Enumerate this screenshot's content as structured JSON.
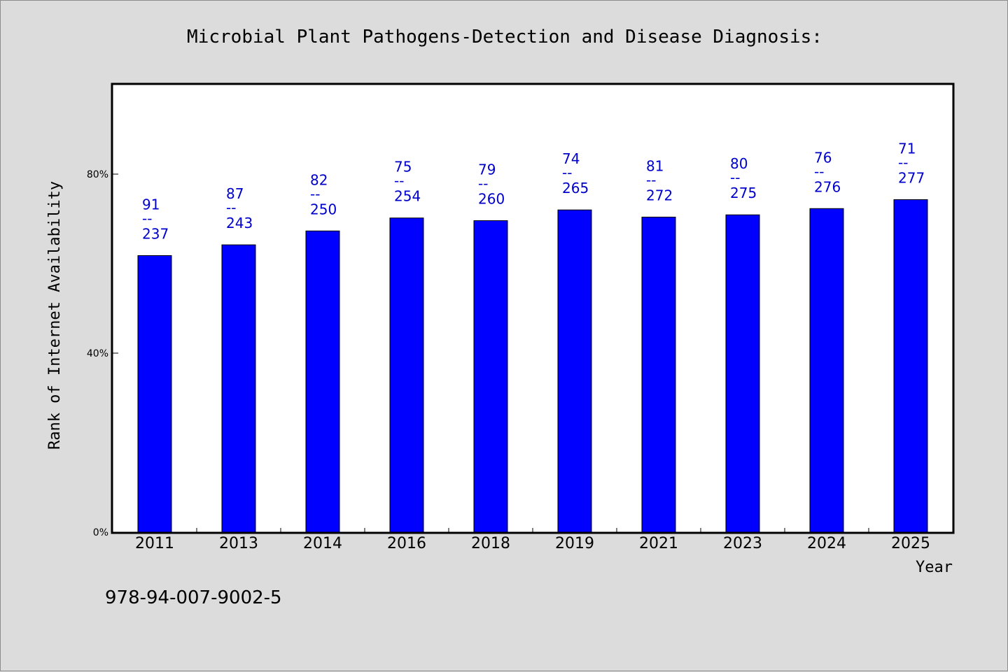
{
  "chart_data": {
    "type": "bar",
    "title": "Microbial Plant Pathogens-Detection and Disease Diagnosis:",
    "xlabel": "Year",
    "ylabel": "Rank of Internet Availability",
    "categories": [
      "2011",
      "2013",
      "2014",
      "2016",
      "2018",
      "2019",
      "2021",
      "2023",
      "2024",
      "2025"
    ],
    "values": [
      61.8,
      64.2,
      67.3,
      70.2,
      69.6,
      72.0,
      70.4,
      70.9,
      72.3,
      74.3
    ],
    "ylim": [
      0,
      100
    ],
    "yticks": [
      0,
      40,
      80
    ],
    "ytick_labels": [
      "0%",
      "40%",
      "80%"
    ],
    "bar_labels": [
      {
        "top": "91",
        "sep": "--",
        "bottom": "237"
      },
      {
        "top": "87",
        "sep": "--",
        "bottom": "243"
      },
      {
        "top": "82",
        "sep": "--",
        "bottom": "250"
      },
      {
        "top": "75",
        "sep": "--",
        "bottom": "254"
      },
      {
        "top": "79",
        "sep": "--",
        "bottom": "260"
      },
      {
        "top": "74",
        "sep": "--",
        "bottom": "265"
      },
      {
        "top": "81",
        "sep": "--",
        "bottom": "272"
      },
      {
        "top": "80",
        "sep": "--",
        "bottom": "275"
      },
      {
        "top": "76",
        "sep": "--",
        "bottom": "276"
      },
      {
        "top": "71",
        "sep": "--",
        "bottom": "277"
      }
    ],
    "bar_color": "#0000ff",
    "label_color": "#0000cc",
    "grid": false,
    "legend": "none",
    "footnote": "978-94-007-9002-5"
  }
}
